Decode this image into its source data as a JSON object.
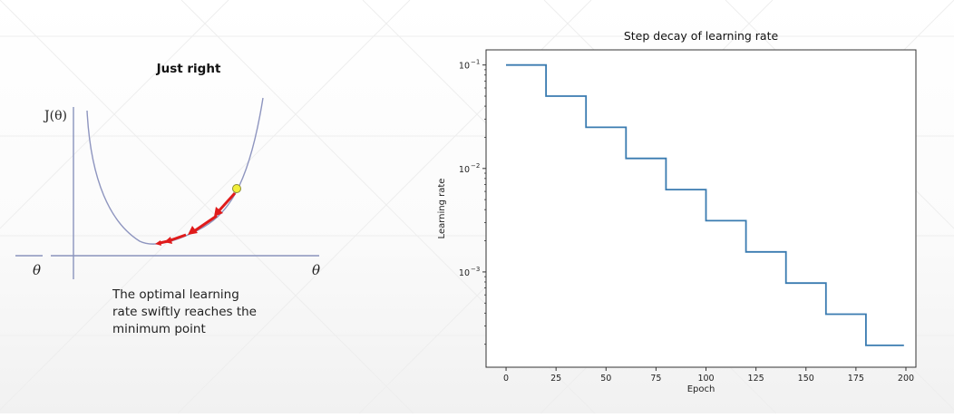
{
  "left_panel": {
    "title": "Just right",
    "y_label": "J(θ)",
    "x_label_left": "θ",
    "x_label_right": "θ",
    "caption_lines": [
      "The optimal learning",
      "rate swiftly reaches the",
      "minimum point"
    ],
    "colors": {
      "curve": "#8e95bf",
      "axis": "#8a94bd",
      "arrow": "#e01b1b",
      "start_point": "#f2ef3a"
    }
  },
  "chart_data": {
    "type": "line",
    "title": "Step decay of learning rate",
    "xlabel": "Epoch",
    "ylabel": "Learning rate",
    "yscale": "log",
    "xlim": [
      -10,
      205
    ],
    "ylim": [
      0.00012,
      0.14
    ],
    "x_ticks": [
      0,
      25,
      50,
      75,
      100,
      125,
      150,
      175,
      200
    ],
    "y_ticks": [
      {
        "value": 0.1,
        "base": "10",
        "exp": "−1"
      },
      {
        "value": 0.01,
        "base": "10",
        "exp": "−2"
      },
      {
        "value": 0.001,
        "base": "10",
        "exp": "−3"
      }
    ],
    "grid": false,
    "series": [
      {
        "color": "#3a7bb0",
        "x": [
          0,
          1,
          2,
          3,
          4,
          5,
          6,
          7,
          8,
          9,
          10,
          11,
          12,
          13,
          14,
          15,
          16,
          17,
          18,
          19,
          20,
          21,
          22,
          23,
          24,
          25,
          26,
          27,
          28,
          29,
          30,
          31,
          32,
          33,
          34,
          35,
          36,
          37,
          38,
          39,
          40,
          41,
          42,
          43,
          44,
          45,
          46,
          47,
          48,
          49,
          50,
          51,
          52,
          53,
          54,
          55,
          56,
          57,
          58,
          59,
          60,
          61,
          62,
          63,
          64,
          65,
          66,
          67,
          68,
          69,
          70,
          71,
          72,
          73,
          74,
          75,
          76,
          77,
          78,
          79,
          80,
          81,
          82,
          83,
          84,
          85,
          86,
          87,
          88,
          89,
          90,
          91,
          92,
          93,
          94,
          95,
          96,
          97,
          98,
          99,
          100,
          101,
          102,
          103,
          104,
          105,
          106,
          107,
          108,
          109,
          110,
          111,
          112,
          113,
          114,
          115,
          116,
          117,
          118,
          119,
          120,
          121,
          122,
          123,
          124,
          125,
          126,
          127,
          128,
          129,
          130,
          131,
          132,
          133,
          134,
          135,
          136,
          137,
          138,
          139,
          140,
          141,
          142,
          143,
          144,
          145,
          146,
          147,
          148,
          149,
          150,
          151,
          152,
          153,
          154,
          155,
          156,
          157,
          158,
          159,
          160,
          161,
          162,
          163,
          164,
          165,
          166,
          167,
          168,
          169,
          170,
          171,
          172,
          173,
          174,
          175,
          176,
          177,
          178,
          179,
          180,
          181,
          182,
          183,
          184,
          185,
          186,
          187,
          188,
          189,
          190,
          191,
          192,
          193,
          194,
          195,
          196,
          197,
          198,
          199
        ],
        "y": [
          0.1,
          0.1,
          0.1,
          0.1,
          0.1,
          0.1,
          0.1,
          0.1,
          0.1,
          0.1,
          0.1,
          0.1,
          0.1,
          0.1,
          0.1,
          0.1,
          0.1,
          0.1,
          0.1,
          0.1,
          0.05,
          0.05,
          0.05,
          0.05,
          0.05,
          0.05,
          0.05,
          0.05,
          0.05,
          0.05,
          0.05,
          0.05,
          0.05,
          0.05,
          0.05,
          0.05,
          0.05,
          0.05,
          0.05,
          0.05,
          0.025,
          0.025,
          0.025,
          0.025,
          0.025,
          0.025,
          0.025,
          0.025,
          0.025,
          0.025,
          0.025,
          0.025,
          0.025,
          0.025,
          0.025,
          0.025,
          0.025,
          0.025,
          0.025,
          0.025,
          0.0125,
          0.0125,
          0.0125,
          0.0125,
          0.0125,
          0.0125,
          0.0125,
          0.0125,
          0.0125,
          0.0125,
          0.0125,
          0.0125,
          0.0125,
          0.0125,
          0.0125,
          0.0125,
          0.0125,
          0.0125,
          0.0125,
          0.0125,
          0.00625,
          0.00625,
          0.00625,
          0.00625,
          0.00625,
          0.00625,
          0.00625,
          0.00625,
          0.00625,
          0.00625,
          0.00625,
          0.00625,
          0.00625,
          0.00625,
          0.00625,
          0.00625,
          0.00625,
          0.00625,
          0.00625,
          0.00625,
          0.003125,
          0.003125,
          0.003125,
          0.003125,
          0.003125,
          0.003125,
          0.003125,
          0.003125,
          0.003125,
          0.003125,
          0.003125,
          0.003125,
          0.003125,
          0.003125,
          0.003125,
          0.003125,
          0.003125,
          0.003125,
          0.003125,
          0.003125,
          0.0015625,
          0.0015625,
          0.0015625,
          0.0015625,
          0.0015625,
          0.0015625,
          0.0015625,
          0.0015625,
          0.0015625,
          0.0015625,
          0.0015625,
          0.0015625,
          0.0015625,
          0.0015625,
          0.0015625,
          0.0015625,
          0.0015625,
          0.0015625,
          0.0015625,
          0.0015625,
          0.00078125,
          0.00078125,
          0.00078125,
          0.00078125,
          0.00078125,
          0.00078125,
          0.00078125,
          0.00078125,
          0.00078125,
          0.00078125,
          0.00078125,
          0.00078125,
          0.00078125,
          0.00078125,
          0.00078125,
          0.00078125,
          0.00078125,
          0.00078125,
          0.00078125,
          0.00078125,
          0.000390625,
          0.000390625,
          0.000390625,
          0.000390625,
          0.000390625,
          0.000390625,
          0.000390625,
          0.000390625,
          0.000390625,
          0.000390625,
          0.000390625,
          0.000390625,
          0.000390625,
          0.000390625,
          0.000390625,
          0.000390625,
          0.000390625,
          0.000390625,
          0.000390625,
          0.000390625,
          0.0001953125,
          0.0001953125,
          0.0001953125,
          0.0001953125,
          0.0001953125,
          0.0001953125,
          0.0001953125,
          0.0001953125,
          0.0001953125,
          0.0001953125,
          0.0001953125,
          0.0001953125,
          0.0001953125,
          0.0001953125,
          0.0001953125,
          0.0001953125,
          0.0001953125,
          0.0001953125,
          0.0001953125,
          0.0001953125
        ]
      }
    ]
  }
}
